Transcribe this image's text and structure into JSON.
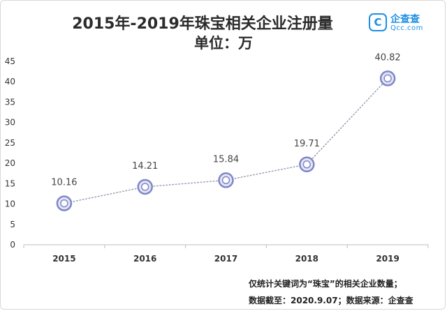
{
  "chart_data": {
    "type": "line",
    "title": "2015年-2019年珠宝相关企业注册量",
    "subtitle": "单位：万",
    "x": [
      "2015",
      "2016",
      "2017",
      "2018",
      "2019"
    ],
    "values": [
      10.16,
      14.21,
      15.84,
      19.71,
      40.82
    ],
    "data_labels": [
      "10.16",
      "14.21",
      "15.84",
      "19.71",
      "40.82"
    ],
    "yticks": [
      "0",
      "5",
      "10",
      "15",
      "20",
      "25",
      "30",
      "35",
      "40",
      "45"
    ],
    "ylim": [
      0,
      45
    ],
    "grid": false,
    "line_style": "dotted",
    "colors": {
      "line": "#9aa0b4",
      "marker_ring": "#7f86c8",
      "marker_fill": "#ffffff",
      "axis": "#bfbfbf",
      "text": "#333333"
    }
  },
  "logo": {
    "badge": "C",
    "name": "企查查",
    "domain": "Qcc.com"
  },
  "footnotes": [
    "仅统计关键词为“珠宝”的相关企业数量；",
    "数据截至：2020.9.07；数据来源：企查查"
  ]
}
